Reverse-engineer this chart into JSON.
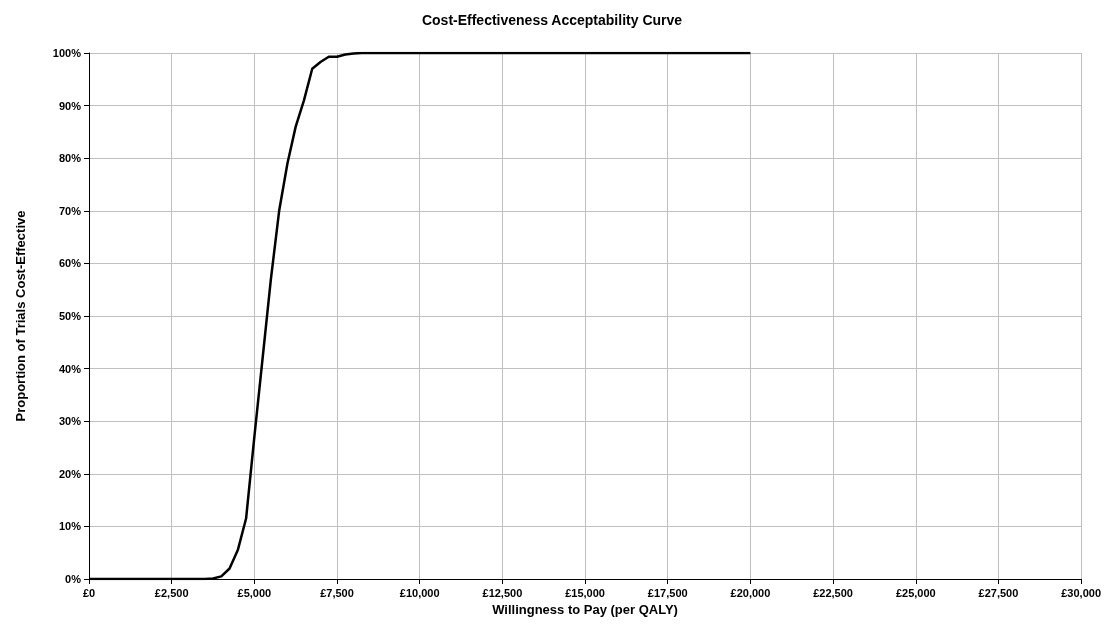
{
  "chart_data": {
    "type": "line",
    "title": "Cost-Effectiveness Acceptability Curve",
    "xlabel": "Willingness to Pay (per QALY)",
    "ylabel": "Proportion of Trials Cost-Effective",
    "x": [
      0,
      3500,
      3750,
      4000,
      4250,
      4500,
      4750,
      5000,
      5250,
      5500,
      5750,
      6000,
      6250,
      6500,
      6750,
      7000,
      7250,
      7500,
      7750,
      8000,
      8250,
      10000,
      15000,
      20000
    ],
    "series": [
      {
        "color": "#000000",
        "values": [
          0,
          0,
          0.1,
          0.5,
          2,
          5.5,
          11.5,
          27,
          42,
          57,
          70,
          79,
          86,
          91,
          97,
          98.3,
          99.3,
          99.3,
          99.7,
          99.9,
          100,
          100,
          100,
          100
        ]
      }
    ],
    "xlim": [
      0,
      30000
    ],
    "xticks": [
      {
        "value": 0,
        "label": "£0"
      },
      {
        "value": 2500,
        "label": "£2,500"
      },
      {
        "value": 5000,
        "label": "£5,000"
      },
      {
        "value": 7500,
        "label": "£7,500"
      },
      {
        "value": 10000,
        "label": "£10,000"
      },
      {
        "value": 12500,
        "label": "£12,500"
      },
      {
        "value": 15000,
        "label": "£15,000"
      },
      {
        "value": 17500,
        "label": "£17,500"
      },
      {
        "value": 20000,
        "label": "£20,000"
      },
      {
        "value": 22500,
        "label": "£22,500"
      },
      {
        "value": 25000,
        "label": "£25,000"
      },
      {
        "value": 27500,
        "label": "£27,500"
      },
      {
        "value": 30000,
        "label": "£30,000"
      }
    ],
    "ylim": [
      0,
      100
    ],
    "yticks": [
      {
        "value": 0,
        "label": "0%"
      },
      {
        "value": 10,
        "label": "10%"
      },
      {
        "value": 20,
        "label": "20%"
      },
      {
        "value": 30,
        "label": "30%"
      },
      {
        "value": 40,
        "label": "40%"
      },
      {
        "value": 50,
        "label": "50%"
      },
      {
        "value": 60,
        "label": "60%"
      },
      {
        "value": 70,
        "label": "70%"
      },
      {
        "value": 80,
        "label": "80%"
      },
      {
        "value": 90,
        "label": "90%"
      },
      {
        "value": 100,
        "label": "100%"
      }
    ],
    "grid": true,
    "marker": "none",
    "line_style": "solid"
  }
}
